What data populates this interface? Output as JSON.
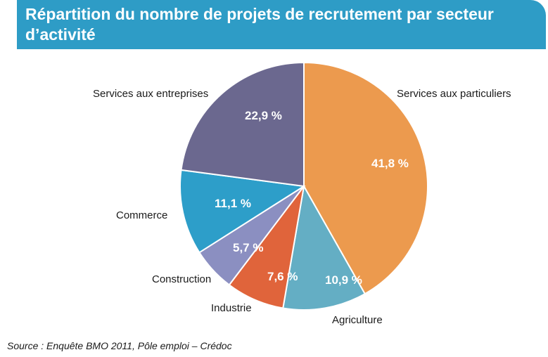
{
  "title": "Répartition du nombre de projets de recrutement par secteur d’activité",
  "source": "Source : Enquête BMO 2011, Pôle emploi – Crédoc",
  "chart_data": {
    "type": "pie",
    "title": "Répartition du nombre de projets de recrutement par secteur d’activité",
    "slices": [
      {
        "label": "Services aux particuliers",
        "value": 41.8,
        "value_label": "41,8 %",
        "color": "#ec9a4e"
      },
      {
        "label": "Agriculture",
        "value": 10.9,
        "value_label": "10,9 %",
        "color": "#64aec4"
      },
      {
        "label": "Industrie",
        "value": 7.6,
        "value_label": "7,6 %",
        "color": "#e0643b"
      },
      {
        "label": "Construction",
        "value": 5.7,
        "value_label": "5,7 %",
        "color": "#8b8fc1"
      },
      {
        "label": "Commerce",
        "value": 11.1,
        "value_label": "11,1 %",
        "color": "#2d9ec9"
      },
      {
        "label": "Services aux entreprises",
        "value": 22.9,
        "value_label": "22,9 %",
        "color": "#6b688f"
      }
    ]
  }
}
